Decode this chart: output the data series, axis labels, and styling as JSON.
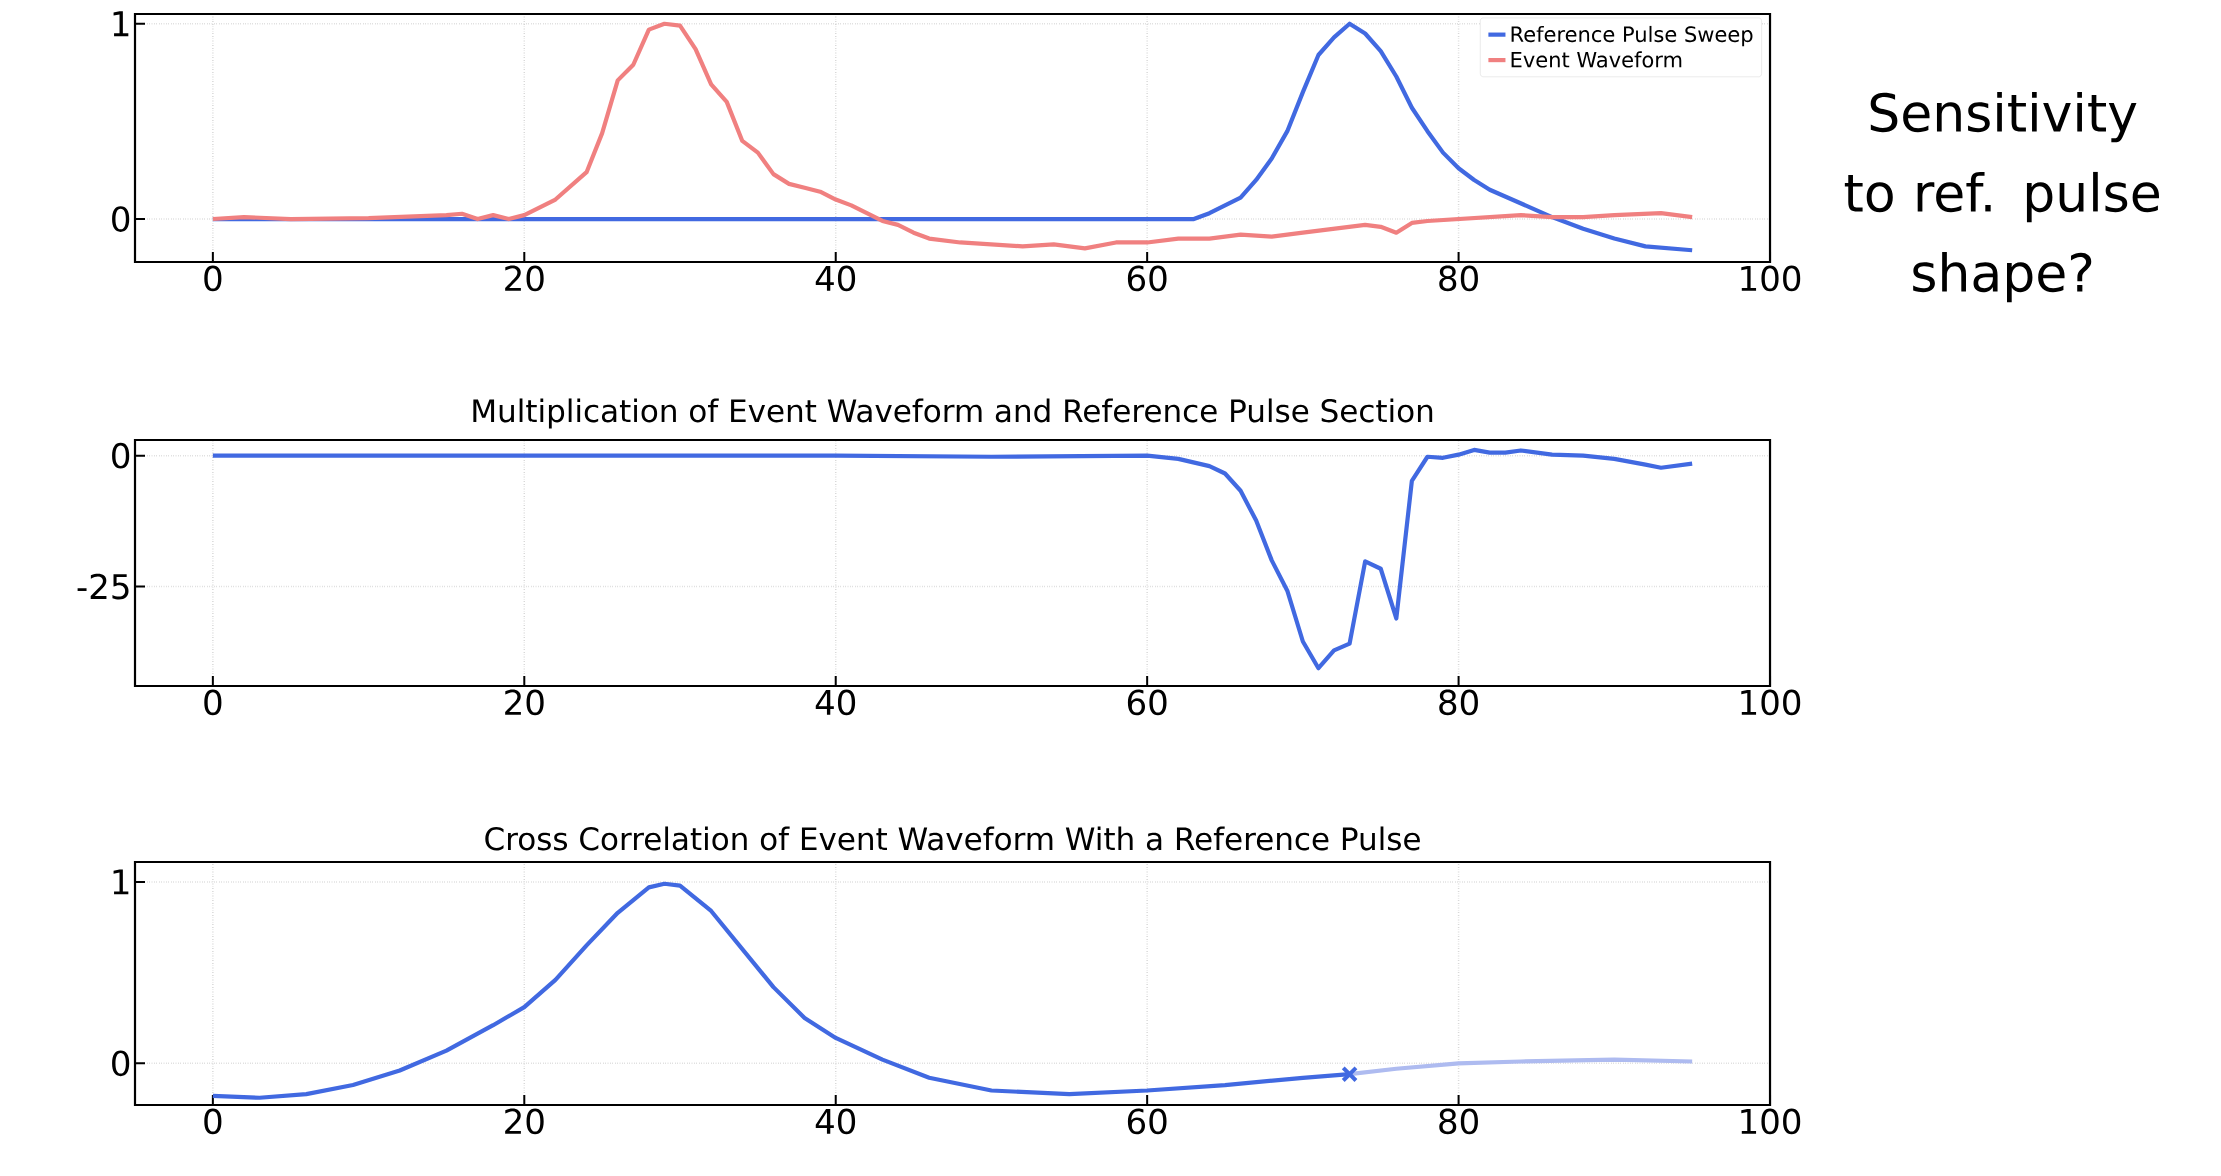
{
  "chart_data": [
    {
      "type": "line",
      "xlim": [
        -5,
        100
      ],
      "ylim": [
        -0.22,
        1.05
      ],
      "xticks": [
        0,
        20,
        40,
        60,
        80,
        100
      ],
      "yticks": [
        0,
        1
      ],
      "grid": true,
      "legend": "top right",
      "line_style": "solid",
      "annotations": [
        "Sensitivity to ref. pulse shape?"
      ],
      "series": [
        {
          "name": "Reference Pulse Sweep",
          "color": "#4169e1",
          "x": [
            0,
            10,
            20,
            30,
            40,
            50,
            60,
            62,
            63,
            64,
            66,
            67,
            68,
            69,
            70,
            71,
            72,
            73,
            74,
            75,
            76,
            77,
            78,
            79,
            80,
            81,
            82,
            84,
            86,
            88,
            90,
            92,
            95
          ],
          "values": [
            0,
            0,
            0,
            0,
            0,
            0,
            0,
            0,
            0,
            0.03,
            0.11,
            0.2,
            0.31,
            0.45,
            0.65,
            0.84,
            0.93,
            1.0,
            0.95,
            0.86,
            0.73,
            0.57,
            0.45,
            0.34,
            0.26,
            0.2,
            0.15,
            0.08,
            0.01,
            -0.05,
            -0.1,
            -0.14,
            -0.16
          ]
        },
        {
          "name": "Event Waveform",
          "color": "#f08080",
          "x": [
            0,
            2,
            5,
            10,
            15,
            16,
            17,
            18,
            19,
            20,
            22,
            24,
            25,
            26,
            27,
            28,
            29,
            30,
            31,
            32,
            33,
            34,
            35,
            36,
            37,
            38,
            39,
            40,
            41,
            42,
            43,
            44,
            45,
            46,
            48,
            50,
            52,
            54,
            56,
            58,
            60,
            62,
            64,
            66,
            68,
            70,
            72,
            74,
            75,
            76,
            77,
            78,
            80,
            84,
            86,
            88,
            90,
            93,
            95
          ],
          "values": [
            0,
            0.01,
            0,
            0.005,
            0.02,
            0.027,
            0,
            0.02,
            0,
            0.02,
            0.1,
            0.24,
            0.44,
            0.71,
            0.79,
            0.97,
            1.0,
            0.99,
            0.87,
            0.69,
            0.6,
            0.4,
            0.34,
            0.23,
            0.18,
            0.16,
            0.14,
            0.1,
            0.07,
            0.03,
            -0.01,
            -0.03,
            -0.07,
            -0.1,
            -0.12,
            -0.13,
            -0.14,
            -0.13,
            -0.15,
            -0.12,
            -0.12,
            -0.1,
            -0.1,
            -0.08,
            -0.09,
            -0.07,
            -0.05,
            -0.03,
            -0.04,
            -0.07,
            -0.02,
            -0.01,
            0,
            0.02,
            0.01,
            0.01,
            0.02,
            0.03,
            0.01
          ]
        }
      ]
    },
    {
      "type": "line",
      "title": "Multiplication of Event Waveform and Reference Pulse Section",
      "xlim": [
        -5,
        100
      ],
      "ylim": [
        -44,
        3
      ],
      "xticks": [
        0,
        20,
        40,
        60,
        80,
        100
      ],
      "yticks": [
        -25,
        0
      ],
      "grid": true,
      "line_style": "solid",
      "series": [
        {
          "color": "#4169e1",
          "x": [
            0,
            10,
            20,
            30,
            40,
            50,
            60,
            62,
            64,
            65,
            66,
            67,
            68,
            69,
            70,
            71,
            72,
            73,
            74,
            75,
            76,
            77,
            78,
            79,
            80,
            81,
            82,
            83,
            84,
            86,
            88,
            90,
            92,
            93,
            95
          ],
          "values": [
            0,
            0,
            0,
            0,
            0,
            -0.2,
            0,
            -0.6,
            -2,
            -3.4,
            -6.7,
            -12.4,
            -20,
            -25.8,
            -35.5,
            -40.6,
            -37.2,
            -35.9,
            -20.2,
            -21.6,
            -31.1,
            -4.8,
            -0.2,
            -0.4,
            0.2,
            1.1,
            0.6,
            0.6,
            1.0,
            0.2,
            0,
            -0.6,
            -1.7,
            -2.3,
            -1.5
          ]
        }
      ]
    },
    {
      "type": "line",
      "title": "Cross Correlation of Event Waveform With a Reference Pulse",
      "xlim": [
        -5,
        100
      ],
      "ylim": [
        -0.23,
        1.11
      ],
      "xticks": [
        0,
        20,
        40,
        60,
        80,
        100
      ],
      "yticks": [
        0,
        1
      ],
      "grid": true,
      "line_style": "solid",
      "series": [
        {
          "color": "#4169e1",
          "x": [
            0,
            3,
            6,
            9,
            12,
            15,
            18,
            20,
            22,
            24,
            26,
            28,
            29,
            30,
            32,
            34,
            36,
            38,
            40,
            43,
            46,
            50,
            55,
            60,
            65,
            70,
            73
          ],
          "values": [
            -0.18,
            -0.19,
            -0.17,
            -0.12,
            -0.04,
            0.07,
            0.21,
            0.31,
            0.46,
            0.65,
            0.83,
            0.97,
            0.99,
            0.98,
            0.84,
            0.63,
            0.42,
            0.25,
            0.14,
            0.02,
            -0.08,
            -0.15,
            -0.17,
            -0.15,
            -0.12,
            -0.08,
            -0.06
          ]
        },
        {
          "color": "#aebbf0",
          "x": [
            73,
            76,
            80,
            84,
            90,
            95
          ],
          "values": [
            -0.06,
            -0.03,
            0,
            0.01,
            0.02,
            0.01
          ]
        },
        {
          "type": "scatter",
          "marker": "cross",
          "color": "#4169e1",
          "x": [
            73
          ],
          "values": [
            -0.06
          ]
        }
      ]
    }
  ]
}
